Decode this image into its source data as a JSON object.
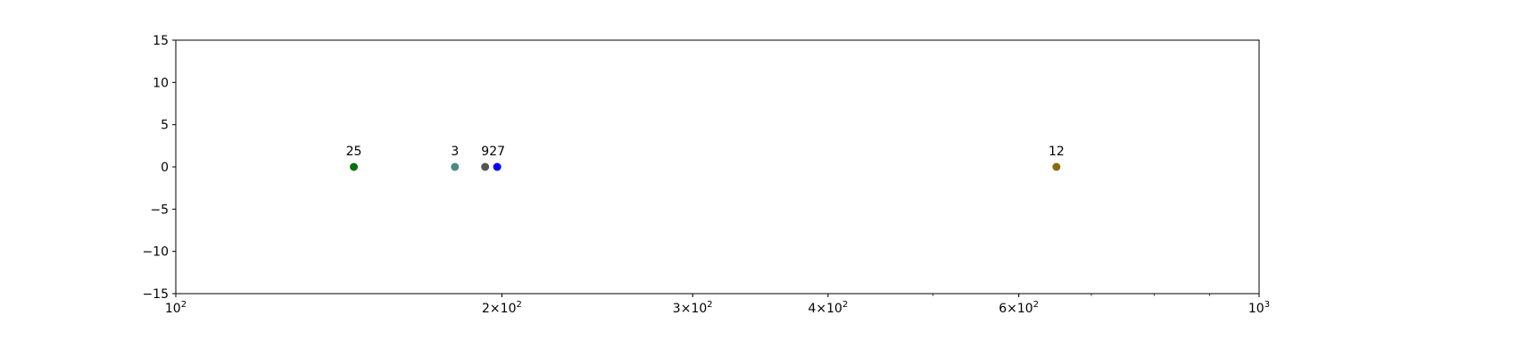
{
  "chart_data": {
    "type": "scatter",
    "title": "",
    "xlabel": "",
    "ylabel": "",
    "xscale": "log",
    "xlim": [
      100,
      1000
    ],
    "ylim": [
      -15,
      15
    ],
    "grid": false,
    "x_ticks": [
      {
        "value": 100,
        "base": "10",
        "exp": "2"
      },
      {
        "value": 200,
        "mant": "2",
        "base": "10",
        "exp": "2"
      },
      {
        "value": 300,
        "mant": "3",
        "base": "10",
        "exp": "2"
      },
      {
        "value": 400,
        "mant": "4",
        "base": "10",
        "exp": "2"
      },
      {
        "value": 600,
        "mant": "6",
        "base": "10",
        "exp": "2"
      },
      {
        "value": 1000,
        "base": "10",
        "exp": "3"
      }
    ],
    "y_ticks": [
      15,
      10,
      5,
      0,
      -5,
      -10,
      -15
    ],
    "y_tick_labels": [
      "15",
      "10",
      "5",
      "0",
      "−5",
      "−10",
      "−15"
    ],
    "points": [
      {
        "x": 146,
        "y": 0,
        "label": "25",
        "color": "#0a6e0a"
      },
      {
        "x": 181,
        "y": 0,
        "label": "3",
        "color": "#4a8a8a"
      },
      {
        "x": 193,
        "y": 0,
        "label": "9",
        "color": "#555555"
      },
      {
        "x": 198,
        "y": 0,
        "label": "27",
        "color": "#0000ff"
      },
      {
        "x": 650,
        "y": 0,
        "label": "12",
        "color": "#8a6a10"
      }
    ]
  }
}
